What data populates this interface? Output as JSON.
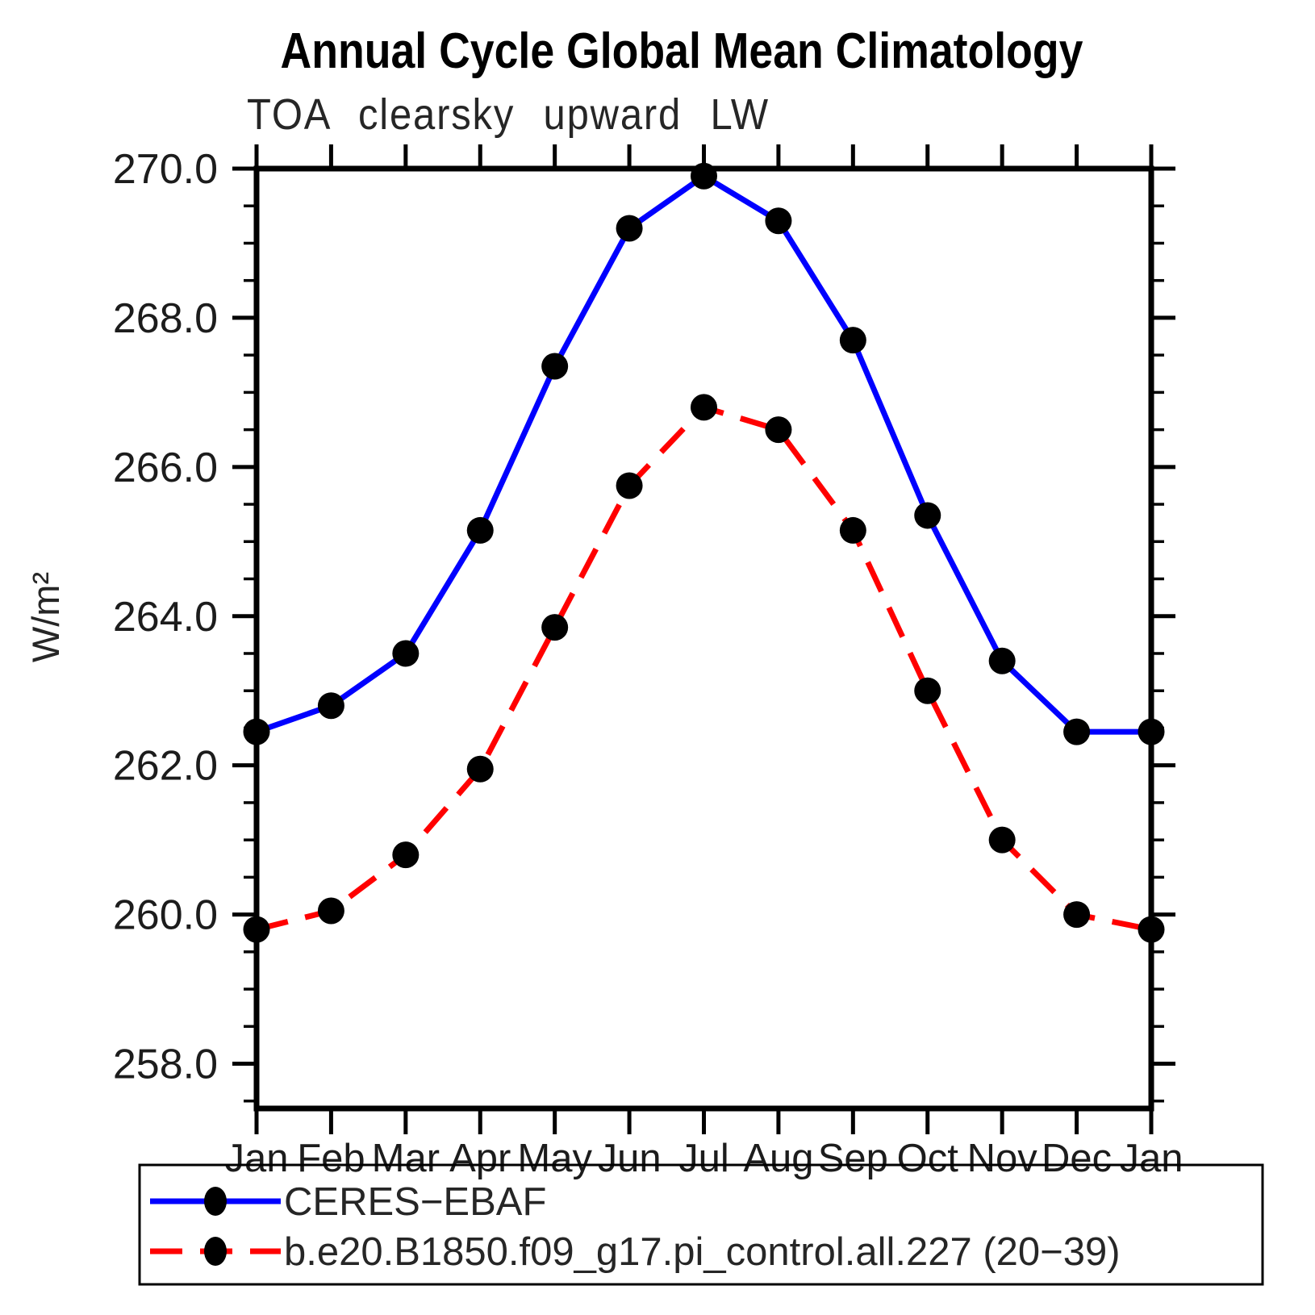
{
  "chart_data": {
    "type": "line",
    "title": "Annual Cycle Global Mean Climatology",
    "subtitle": "TOA clearsky upward LW",
    "ylabel": "W/m²",
    "xlabel": "",
    "categories": [
      "Jan",
      "Feb",
      "Mar",
      "Apr",
      "May",
      "Jun",
      "Jul",
      "Aug",
      "Sep",
      "Oct",
      "Nov",
      "Dec",
      "Jan"
    ],
    "ylim": [
      257.4,
      270.0
    ],
    "yticks_major": [
      258,
      260,
      262,
      264,
      266,
      268,
      270
    ],
    "ytick_labels": [
      "258.0",
      "260.0",
      "262.0",
      "264.0",
      "266.0",
      "268.0",
      "270.0"
    ],
    "ytick_minor_step": 0.5,
    "grid": false,
    "background_color": "#ffffff",
    "frame_color": "#000000",
    "legend_position": "bottom-left-box",
    "series": [
      {
        "name": "CERES−EBAF",
        "color": "#0000ff",
        "line_style": "solid",
        "marker": "circle",
        "marker_color": "#000000",
        "values": [
          262.45,
          262.8,
          263.5,
          265.15,
          267.35,
          269.2,
          269.9,
          269.3,
          267.7,
          265.35,
          263.4,
          262.45,
          262.45
        ]
      },
      {
        "name": "b.e20.B1850.f09_g17.pi_control.all.227 (20−39)",
        "color": "#ff0000",
        "line_style": "dashed",
        "marker": "circle",
        "marker_color": "#000000",
        "values": [
          259.8,
          260.05,
          260.8,
          261.95,
          263.85,
          265.75,
          266.8,
          266.5,
          265.15,
          263.0,
          261.0,
          260.0,
          259.8
        ]
      }
    ]
  }
}
